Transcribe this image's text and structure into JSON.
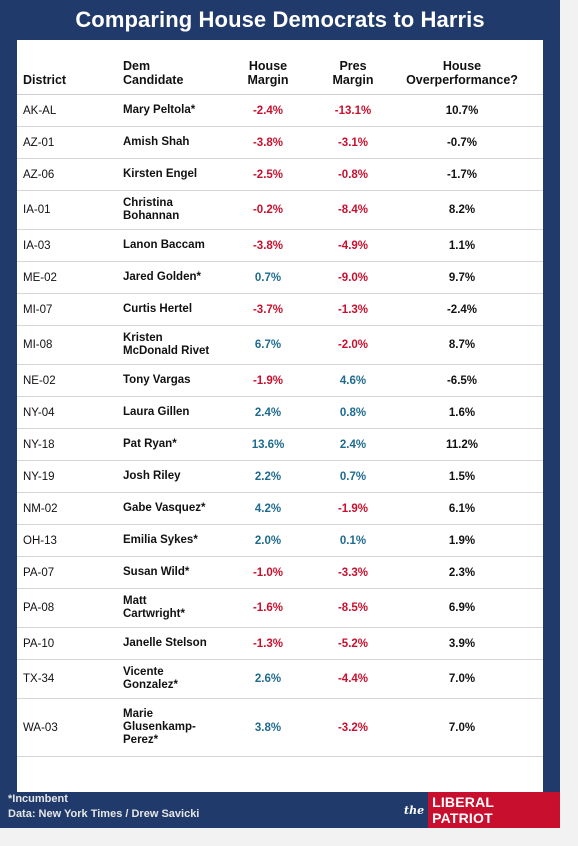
{
  "title": "Comparing House Democrats to Harris",
  "headers": {
    "district": "District",
    "candidate": [
      "Dem",
      "Candidate"
    ],
    "house": [
      "House",
      "Margin"
    ],
    "pres": [
      "Pres",
      "Margin"
    ],
    "over": [
      "House",
      "Overperformance?"
    ]
  },
  "colors": {
    "navy": "#1f3a6b",
    "negative": "#c8102e",
    "positive": "#1f6b8e",
    "brand_red": "#c8102e"
  },
  "rows": [
    {
      "district": "AK-AL",
      "candidate": [
        "Mary Peltola*"
      ],
      "house": "-2.4%",
      "pres": "-13.1%",
      "over": "10.7%"
    },
    {
      "district": "AZ-01",
      "candidate": [
        "Amish Shah"
      ],
      "house": "-3.8%",
      "pres": "-3.1%",
      "over": "-0.7%"
    },
    {
      "district": "AZ-06",
      "candidate": [
        "Kirsten Engel"
      ],
      "house": "-2.5%",
      "pres": "-0.8%",
      "over": "-1.7%"
    },
    {
      "district": "IA-01",
      "candidate": [
        "Christina",
        "Bohannan"
      ],
      "house": "-0.2%",
      "pres": "-8.4%",
      "over": "8.2%"
    },
    {
      "district": "IA-03",
      "candidate": [
        "Lanon Baccam"
      ],
      "house": "-3.8%",
      "pres": "-4.9%",
      "over": "1.1%"
    },
    {
      "district": "ME-02",
      "candidate": [
        "Jared Golden*"
      ],
      "house": "0.7%",
      "pres": "-9.0%",
      "over": "9.7%"
    },
    {
      "district": "MI-07",
      "candidate": [
        "Curtis Hertel"
      ],
      "house": "-3.7%",
      "pres": "-1.3%",
      "over": "-2.4%"
    },
    {
      "district": "MI-08",
      "candidate": [
        "Kristen",
        "McDonald Rivet"
      ],
      "house": "6.7%",
      "pres": "-2.0%",
      "over": "8.7%"
    },
    {
      "district": "NE-02",
      "candidate": [
        "Tony Vargas"
      ],
      "house": "-1.9%",
      "pres": "4.6%",
      "over": "-6.5%"
    },
    {
      "district": "NY-04",
      "candidate": [
        "Laura Gillen"
      ],
      "house": "2.4%",
      "pres": "0.8%",
      "over": "1.6%"
    },
    {
      "district": "NY-18",
      "candidate": [
        "Pat Ryan*"
      ],
      "house": "13.6%",
      "pres": "2.4%",
      "over": "11.2%"
    },
    {
      "district": "NY-19",
      "candidate": [
        "Josh Riley"
      ],
      "house": "2.2%",
      "pres": "0.7%",
      "over": "1.5%"
    },
    {
      "district": "NM-02",
      "candidate": [
        "Gabe Vasquez*"
      ],
      "house": "4.2%",
      "pres": "-1.9%",
      "over": "6.1%"
    },
    {
      "district": "OH-13",
      "candidate": [
        "Emilia Sykes*"
      ],
      "house": "2.0%",
      "pres": "0.1%",
      "over": "1.9%"
    },
    {
      "district": "PA-07",
      "candidate": [
        "Susan Wild*"
      ],
      "house": "-1.0%",
      "pres": "-3.3%",
      "over": "2.3%"
    },
    {
      "district": "PA-08",
      "candidate": [
        "Matt",
        "Cartwright*"
      ],
      "house": "-1.6%",
      "pres": "-8.5%",
      "over": "6.9%"
    },
    {
      "district": "PA-10",
      "candidate": [
        "Janelle Stelson"
      ],
      "house": "-1.3%",
      "pres": "-5.2%",
      "over": "3.9%"
    },
    {
      "district": "TX-34",
      "candidate": [
        "Vicente",
        "Gonzalez*"
      ],
      "house": "2.6%",
      "pres": "-4.4%",
      "over": "7.0%"
    },
    {
      "district": "WA-03",
      "candidate": [
        "Marie",
        "Glusenkamp-",
        "Perez*"
      ],
      "house": "3.8%",
      "pres": "-3.2%",
      "over": "7.0%"
    }
  ],
  "footer": {
    "note": "*Incumbent",
    "source": "Data: New York Times / Drew Savicki"
  },
  "brand": {
    "prefix": "the",
    "name": "LIBERAL PATRIOT"
  }
}
